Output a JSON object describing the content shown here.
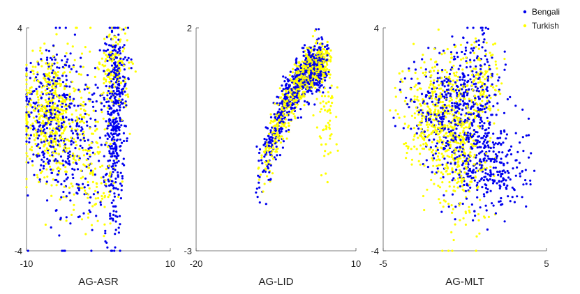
{
  "chart_data": [
    {
      "type": "scatter",
      "xlabel": "AG-ASR",
      "xlim": [
        -10,
        10
      ],
      "ylim": [
        -4,
        4
      ],
      "xticks": [
        "-10",
        "10"
      ],
      "yticks": [
        "-4",
        "4"
      ],
      "series": [
        {
          "name": "Bengali",
          "color": "#0000ee",
          "clusters": [
            {
              "cx": -7,
              "cy": 1,
              "sx": 1.8,
              "sy": 1.3,
              "n": 260
            },
            {
              "cx": -3,
              "cy": -0.3,
              "sx": 2.2,
              "sy": 1.6,
              "n": 220
            },
            {
              "cx": 2.2,
              "cy": 0.3,
              "sx": 0.6,
              "sy": 1.9,
              "n": 330
            },
            {
              "cx": 2.8,
              "cy": 2.3,
              "sx": 0.8,
              "sy": 0.9,
              "n": 90
            }
          ]
        },
        {
          "name": "Turkish",
          "color": "#ffff00",
          "clusters": [
            {
              "cx": -7,
              "cy": 0.9,
              "sx": 1.8,
              "sy": 1.1,
              "n": 380
            },
            {
              "cx": -3.5,
              "cy": 0.6,
              "sx": 2.2,
              "sy": 1.5,
              "n": 180
            },
            {
              "cx": 2.3,
              "cy": 2.5,
              "sx": 1,
              "sy": 0.8,
              "n": 150
            },
            {
              "cx": 0,
              "cy": -1.5,
              "sx": 1.3,
              "sy": 0.8,
              "n": 80
            }
          ]
        }
      ]
    },
    {
      "type": "scatter",
      "xlabel": "AG-LID",
      "xlim": [
        -20,
        10
      ],
      "ylim": [
        -3,
        2
      ],
      "xticks": [
        "-20",
        "10"
      ],
      "yticks": [
        "-3",
        "2"
      ],
      "series": [
        {
          "name": "Bengali",
          "color": "#0000ee",
          "curve": {
            "x0": -9,
            "x1": 4,
            "y_at_x0": -1.8,
            "y_peak": 1.15,
            "x_peak": 4,
            "scatter": 0.28,
            "n": 650
          }
        },
        {
          "name": "Turkish",
          "color": "#ffff00",
          "curve": {
            "x0": -8,
            "x1": 4.5,
            "y_at_x0": -1.6,
            "y_peak": 1.2,
            "x_peak": 4,
            "scatter": 0.22,
            "n": 700
          },
          "extra": [
            {
              "cx": 4.5,
              "cy": 0,
              "sx": 0.8,
              "sy": 0.5,
              "n": 60
            }
          ]
        }
      ]
    },
    {
      "type": "scatter",
      "xlabel": "AG-MLT",
      "xlim": [
        -5,
        5
      ],
      "ylim": [
        -4,
        4
      ],
      "xticks": [
        "-5",
        "5"
      ],
      "yticks": [
        "-4",
        "4"
      ],
      "series": [
        {
          "name": "Bengali",
          "color": "#0000ee",
          "clusters": [
            {
              "cx": 0.3,
              "cy": 1.2,
              "sx": 1,
              "sy": 1.3,
              "n": 420
            },
            {
              "cx": 1.5,
              "cy": -1,
              "sx": 1.2,
              "sy": 0.8,
              "n": 260
            },
            {
              "cx": -1.8,
              "cy": 1,
              "sx": 0.9,
              "sy": 1,
              "n": 150
            }
          ]
        },
        {
          "name": "Turkish",
          "color": "#ffff00",
          "clusters": [
            {
              "cx": -1.8,
              "cy": 1,
              "sx": 1,
              "sy": 1,
              "n": 380
            },
            {
              "cx": -0.3,
              "cy": -0.5,
              "sx": 1,
              "sy": 1.3,
              "n": 280
            },
            {
              "cx": 0.8,
              "cy": 2,
              "sx": 0.8,
              "sy": 0.8,
              "n": 120
            }
          ]
        }
      ]
    }
  ],
  "legend": {
    "placement": "top-right",
    "items": [
      {
        "label": "Bengali",
        "color": "#0000ee"
      },
      {
        "label": "Turkish",
        "color": "#ffff00"
      }
    ]
  }
}
